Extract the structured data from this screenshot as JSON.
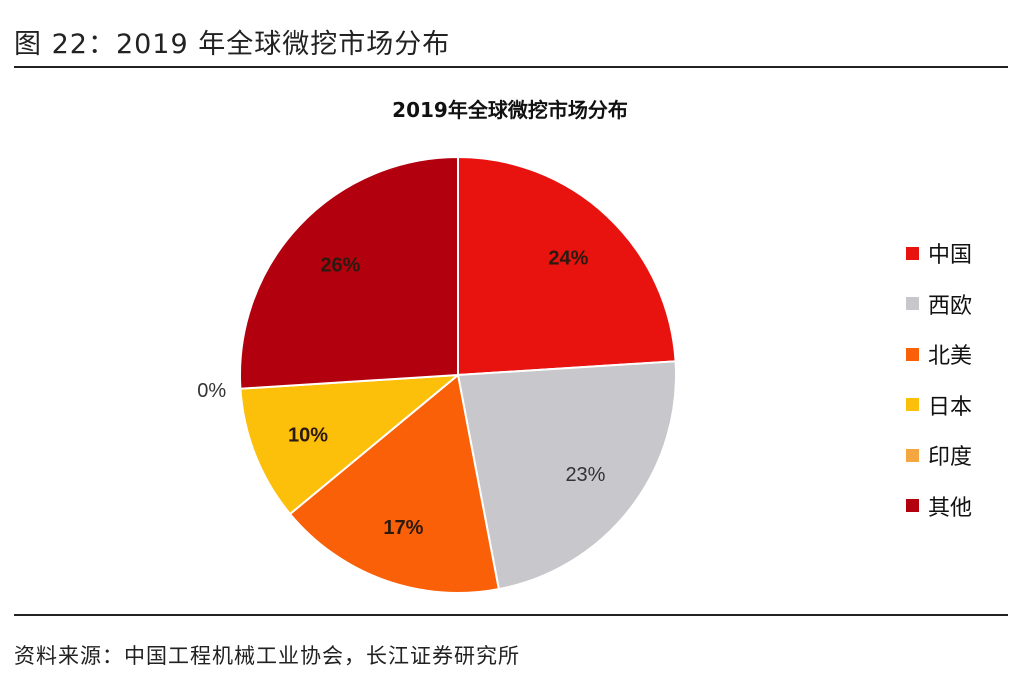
{
  "figure_title": "图 22：2019 年全球微挖市场分布",
  "source": "资料来源：中国工程机械工业协会，长江证券研究所",
  "chart_data": {
    "type": "pie",
    "title": "2019年全球微挖市场分布",
    "categories": [
      "中国",
      "西欧",
      "北美",
      "日本",
      "印度",
      "其他"
    ],
    "values": [
      24,
      23,
      17,
      10,
      0,
      26
    ],
    "labels": [
      "24%",
      "23%",
      "17%",
      "10%",
      "0%",
      "26%"
    ],
    "colors": [
      "#e8120f",
      "#c8c8cc",
      "#fa6008",
      "#fcbf0a",
      "#f4a640",
      "#b3000e"
    ],
    "legend_position": "right",
    "start": "top, clockwise"
  }
}
